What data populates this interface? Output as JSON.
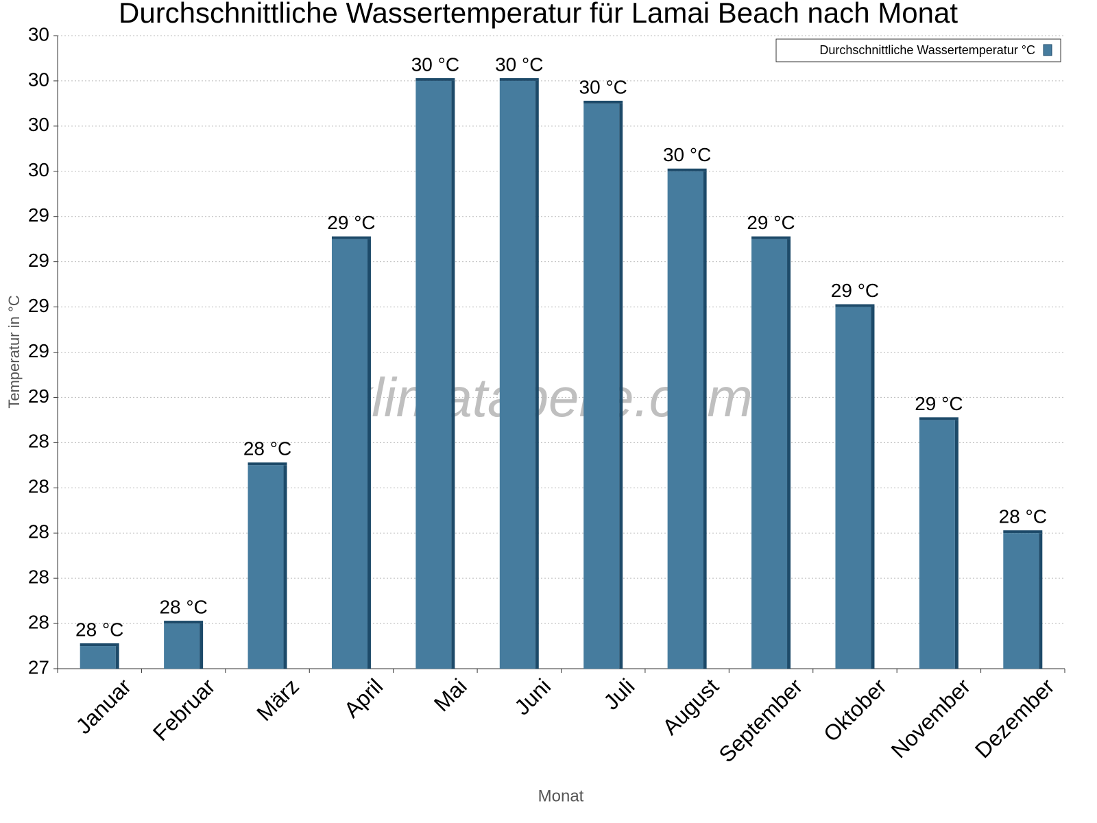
{
  "chart_data": {
    "type": "bar",
    "title": "Durchschnittliche Wassertemperatur für Lamai Beach nach Monat",
    "x_label": "Monat",
    "y_label": "Temperatur in °C",
    "watermark": "klimatabelle.com",
    "categories": [
      "Januar",
      "Februar",
      "März",
      "April",
      "Mai",
      "Juni",
      "Juli",
      "August",
      "September",
      "Oktober",
      "November",
      "Dezember"
    ],
    "series": [
      {
        "name": "Durchschnittliche Wassertemperatur °C",
        "color": "#467c9e",
        "values": [
          27.5,
          27.6,
          28.3,
          29.3,
          30.0,
          30.0,
          29.9,
          29.6,
          29.3,
          29.0,
          28.5,
          28.0
        ],
        "value_labels": [
          "28 °C",
          "28 °C",
          "28 °C",
          "29 °C",
          "30 °C",
          "30 °C",
          "30 °C",
          "30 °C",
          "29 °C",
          "29 °C",
          "29 °C",
          "28 °C"
        ]
      }
    ],
    "ylim": [
      27.4,
      30.2
    ],
    "yticks": [
      {
        "value": 27.4,
        "label": "27"
      },
      {
        "value": 27.6,
        "label": "28"
      },
      {
        "value": 27.8,
        "label": "28"
      },
      {
        "value": 28.0,
        "label": "28"
      },
      {
        "value": 28.2,
        "label": "28"
      },
      {
        "value": 28.4,
        "label": "28"
      },
      {
        "value": 28.6,
        "label": "29"
      },
      {
        "value": 28.8,
        "label": "29"
      },
      {
        "value": 29.0,
        "label": "29"
      },
      {
        "value": 29.2,
        "label": "29"
      },
      {
        "value": 29.4,
        "label": "29"
      },
      {
        "value": 29.6,
        "label": "30"
      },
      {
        "value": 29.8,
        "label": "30"
      },
      {
        "value": 30.0,
        "label": "30"
      },
      {
        "value": 30.2,
        "label": "30"
      }
    ],
    "grid": true,
    "legend": "top-right"
  }
}
